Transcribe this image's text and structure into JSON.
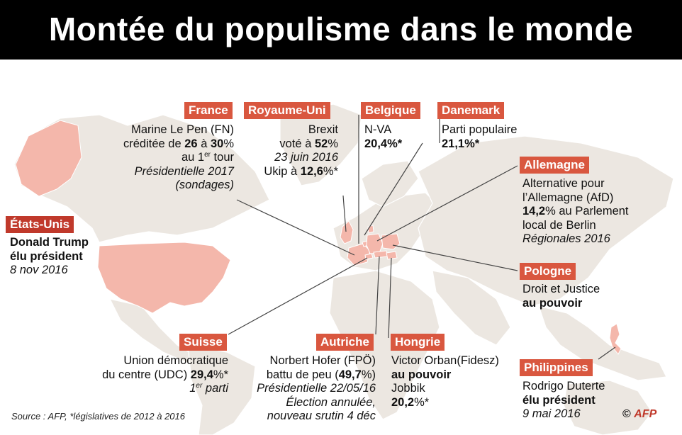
{
  "title": "Montée du populisme dans le monde",
  "colors": {
    "label_bg": "#d9573f",
    "highlight": "#f4b7ab",
    "land": "#ece7e1",
    "water": "#ffffff",
    "line": "#444444"
  },
  "countries": {
    "france": {
      "name": "France",
      "lines": [
        "Marine Le Pen (FN)",
        "créditée de ",
        "26",
        " à ",
        "30",
        "%",
        "au 1",
        "er",
        " tour",
        "Présidentielle 2017",
        "(sondages)"
      ]
    },
    "uk": {
      "name": "Royaume-Uni",
      "lines": [
        "Brexit",
        "voté à ",
        "52",
        "%",
        "23 juin 2016",
        "Ukip à ",
        "12,6",
        "%*"
      ]
    },
    "belgium": {
      "name": "Belgique",
      "lines": [
        "N-VA",
        "20,4",
        "%*"
      ]
    },
    "denmark": {
      "name": "Danemark",
      "lines": [
        "Parti populaire",
        "21,1",
        "%*"
      ]
    },
    "germany": {
      "name": "Allemagne",
      "lines": [
        "Alternative pour",
        "l’Allemagne (AfD)",
        "14,2",
        "% au Parlement",
        "local de Berlin",
        "Régionales 2016"
      ]
    },
    "usa": {
      "name": "États-Unis",
      "lines": [
        "Donald Trump",
        "élu président",
        "8 nov 2016"
      ]
    },
    "poland": {
      "name": "Pologne",
      "lines": [
        "Droit et Justice",
        "au pouvoir"
      ]
    },
    "switzerland": {
      "name": "Suisse",
      "lines": [
        "Union démocratique",
        "du centre (UDC) ",
        "29,4",
        "%*",
        "1",
        "er",
        " parti"
      ]
    },
    "austria": {
      "name": "Autriche",
      "lines": [
        "Norbert Hofer (FPÖ)",
        "battu de peu (",
        "49,7",
        "%)",
        "Présidentielle 22/05/16",
        "Élection annulée,",
        "nouveau srutin 4 déc"
      ]
    },
    "hungary": {
      "name": "Hongrie",
      "lines": [
        "Victor Orban(Fidesz)",
        "au pouvoir",
        "Jobbik",
        "20,2",
        "%*"
      ]
    },
    "philippines": {
      "name": "Philippines",
      "lines": [
        "Rodrigo Duterte",
        "élu président",
        "9 mai 2016"
      ]
    }
  },
  "source": "Source : AFP, *législatives de 2012 à 2016",
  "credit": {
    "copyright": "©",
    "agency": "AFP"
  }
}
